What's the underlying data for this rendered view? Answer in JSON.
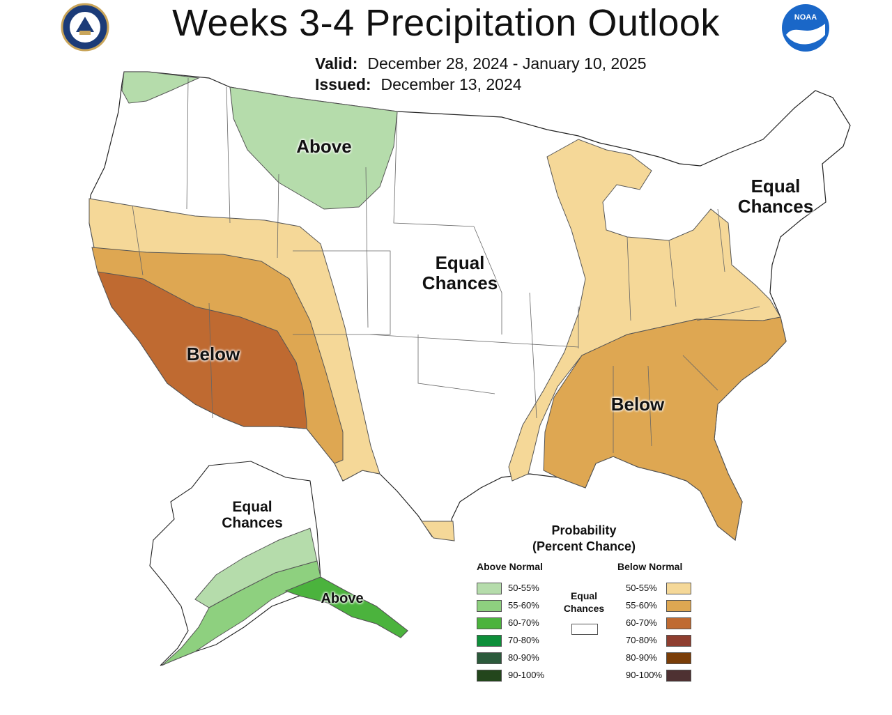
{
  "title": "Weeks 3-4 Precipitation Outlook",
  "valid": {
    "label": "Valid:",
    "value": "December 28, 2024 - January 10, 2025"
  },
  "issued": {
    "label": "Issued:",
    "value": "December 13, 2024"
  },
  "logos": {
    "left": "doc-seal-icon",
    "right": "noaa-logo-icon"
  },
  "regions": {
    "north_above": "Above",
    "central_ec_1": "Equal",
    "central_ec_2": "Chances",
    "northeast_ec_1": "Equal",
    "northeast_ec_2": "Chances",
    "southwest_below": "Below",
    "southeast_below": "Below",
    "alaska_ec_1": "Equal",
    "alaska_ec_2": "Chances",
    "alaska_above": "Above"
  },
  "legend": {
    "title_1": "Probability",
    "title_2": "(Percent Chance)",
    "above_header": "Above Normal",
    "below_header": "Below Normal",
    "equal_1": "Equal",
    "equal_2": "Chances",
    "above": [
      {
        "label": "50-55%",
        "color": "#b5dcab"
      },
      {
        "label": "55-60%",
        "color": "#8ed07f"
      },
      {
        "label": "60-70%",
        "color": "#4bb33d"
      },
      {
        "label": "70-80%",
        "color": "#0e8f3a"
      },
      {
        "label": "80-90%",
        "color": "#2b5a3b"
      },
      {
        "label": "90-100%",
        "color": "#23461c"
      }
    ],
    "below": [
      {
        "label": "50-55%",
        "color": "#f5d898"
      },
      {
        "label": "55-60%",
        "color": "#dea752"
      },
      {
        "label": "60-70%",
        "color": "#bf6a31"
      },
      {
        "label": "70-80%",
        "color": "#8e3e2f"
      },
      {
        "label": "80-90%",
        "color": "#7a3d07"
      },
      {
        "label": "90-100%",
        "color": "#4e3132"
      }
    ],
    "equal_color": "#ffffff"
  }
}
